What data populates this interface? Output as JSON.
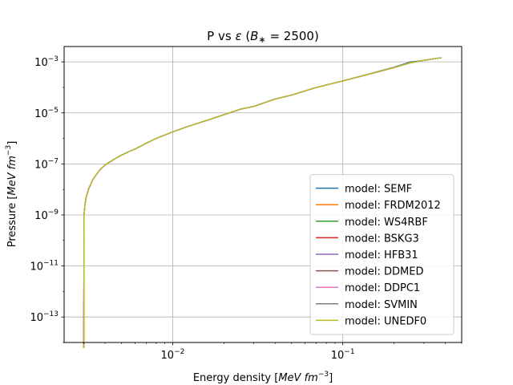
{
  "chart_data": {
    "type": "line",
    "title": "P vs ε (B* = 2500)",
    "xlabel": "Energy density [MeV fm^-3]",
    "ylabel": "Pressure [MeV fm^-3]",
    "x_scale": "log",
    "y_scale": "log",
    "xlim": [
      0.0023,
      0.5
    ],
    "ylim": [
      1e-14,
      0.004
    ],
    "grid": true,
    "legend_position": "lower right",
    "x_major_ticks": [
      0.01,
      0.1
    ],
    "y_major_ticks": [
      1e-13,
      1e-11,
      1e-09,
      1e-07,
      1e-05,
      0.001
    ],
    "series": [
      {
        "name": "model: SEMF",
        "color": "#1f77b4",
        "x": [
          0.003,
          0.00301,
          0.00305,
          0.0031,
          0.0032,
          0.0034,
          0.0037,
          0.004,
          0.0045,
          0.005,
          0.0055,
          0.006,
          0.007,
          0.008,
          0.01,
          0.012,
          0.015,
          0.02,
          0.025,
          0.03,
          0.04,
          0.05,
          0.07,
          0.1,
          0.15,
          0.2,
          0.25,
          0.3,
          0.35,
          0.38
        ],
        "y": [
          6e-15,
          1e-09,
          2.5e-09,
          5e-09,
          1e-08,
          2.5e-08,
          5.5e-08,
          9e-08,
          1.5e-07,
          2.2e-07,
          3e-07,
          3.8e-07,
          6.5e-07,
          1e-06,
          1.8e-06,
          2.8e-06,
          4.5e-06,
          8.5e-06,
          1.4e-05,
          1.8e-05,
          3.5e-05,
          5e-05,
          0.0001,
          0.00018,
          0.00037,
          0.00062,
          0.001,
          0.00115,
          0.00135,
          0.00145
        ]
      },
      {
        "name": "model: FRDM2012",
        "color": "#ff7f0e",
        "x": [
          0.003,
          0.00301,
          0.00305,
          0.0031,
          0.0032,
          0.0034,
          0.0037,
          0.004,
          0.0045,
          0.005,
          0.0055,
          0.006,
          0.007,
          0.008,
          0.01,
          0.012,
          0.015,
          0.02,
          0.025,
          0.03,
          0.04,
          0.05,
          0.07,
          0.1,
          0.15,
          0.2,
          0.25,
          0.3,
          0.35,
          0.38
        ],
        "y": [
          6e-15,
          1e-09,
          2.5e-09,
          5e-09,
          1e-08,
          2.5e-08,
          5.5e-08,
          9e-08,
          1.5e-07,
          2.2e-07,
          3e-07,
          3.8e-07,
          6.5e-07,
          1e-06,
          1.8e-06,
          2.8e-06,
          4.5e-06,
          8.5e-06,
          1.4e-05,
          1.8e-05,
          3.5e-05,
          5e-05,
          0.0001,
          0.00018,
          0.00036,
          0.0006,
          0.00094,
          0.00115,
          0.00135,
          0.00145
        ]
      },
      {
        "name": "model: WS4RBF",
        "color": "#2ca02c",
        "x": [
          0.003,
          0.00301,
          0.00305,
          0.0031,
          0.0032,
          0.0034,
          0.0037,
          0.004,
          0.0045,
          0.005,
          0.0055,
          0.006,
          0.007,
          0.008,
          0.01,
          0.012,
          0.015,
          0.02,
          0.025,
          0.03,
          0.04,
          0.05,
          0.07,
          0.1,
          0.15,
          0.2,
          0.25,
          0.3,
          0.35,
          0.38
        ],
        "y": [
          6e-15,
          1e-09,
          2.5e-09,
          5e-09,
          1e-08,
          2.5e-08,
          5.5e-08,
          9e-08,
          1.5e-07,
          2.2e-07,
          3e-07,
          3.8e-07,
          6.5e-07,
          1e-06,
          1.8e-06,
          2.8e-06,
          4.5e-06,
          8.5e-06,
          1.4e-05,
          1.8e-05,
          3.5e-05,
          5e-05,
          0.0001,
          0.00018,
          0.00036,
          0.0006,
          0.00092,
          0.00115,
          0.00135,
          0.00145
        ]
      },
      {
        "name": "model: BSKG3",
        "color": "#d62728",
        "x": [
          0.003,
          0.00301,
          0.00305,
          0.0031,
          0.0032,
          0.0034,
          0.0037,
          0.004,
          0.0045,
          0.005,
          0.0055,
          0.006,
          0.007,
          0.008,
          0.01,
          0.012,
          0.015,
          0.02,
          0.025,
          0.03,
          0.04,
          0.05,
          0.07,
          0.1,
          0.15,
          0.2,
          0.25,
          0.3,
          0.35,
          0.38
        ],
        "y": [
          6e-15,
          1e-09,
          2.5e-09,
          5e-09,
          1e-08,
          2.5e-08,
          5.5e-08,
          9e-08,
          1.5e-07,
          2.2e-07,
          3e-07,
          3.8e-07,
          6.5e-07,
          1e-06,
          1.8e-06,
          2.8e-06,
          4.5e-06,
          8.5e-06,
          1.4e-05,
          1.8e-05,
          3.5e-05,
          5e-05,
          0.0001,
          0.00018,
          0.00036,
          0.0006,
          0.00093,
          0.00115,
          0.00135,
          0.00145
        ]
      },
      {
        "name": "model: HFB31",
        "color": "#9467bd",
        "x": [
          0.003,
          0.00301,
          0.00305,
          0.0031,
          0.0032,
          0.0034,
          0.0037,
          0.004,
          0.0045,
          0.005,
          0.0055,
          0.006,
          0.007,
          0.008,
          0.01,
          0.012,
          0.015,
          0.02,
          0.025,
          0.03,
          0.04,
          0.05,
          0.07,
          0.1,
          0.15,
          0.2,
          0.25,
          0.3,
          0.35,
          0.38
        ],
        "y": [
          6e-15,
          1e-09,
          2.5e-09,
          5e-09,
          1e-08,
          2.5e-08,
          5.5e-08,
          9e-08,
          1.5e-07,
          2.2e-07,
          3e-07,
          3.8e-07,
          6.5e-07,
          1e-06,
          1.8e-06,
          2.8e-06,
          4.5e-06,
          8.5e-06,
          1.4e-05,
          1.8e-05,
          3.5e-05,
          5e-05,
          0.0001,
          0.00018,
          0.00036,
          0.0006,
          0.00092,
          0.00115,
          0.00135,
          0.00145
        ]
      },
      {
        "name": "model: DDMED",
        "color": "#8c564b",
        "x": [
          0.003,
          0.00301,
          0.00305,
          0.0031,
          0.0032,
          0.0034,
          0.0037,
          0.004,
          0.0045,
          0.005,
          0.0055,
          0.006,
          0.007,
          0.008,
          0.01,
          0.012,
          0.015,
          0.02,
          0.025,
          0.03,
          0.04,
          0.05,
          0.07,
          0.1,
          0.15,
          0.2,
          0.25,
          0.3,
          0.35,
          0.38
        ],
        "y": [
          6e-15,
          1e-09,
          2.5e-09,
          5e-09,
          1e-08,
          2.5e-08,
          5.5e-08,
          9e-08,
          1.5e-07,
          2.2e-07,
          3e-07,
          3.8e-07,
          6.5e-07,
          1e-06,
          1.8e-06,
          2.8e-06,
          4.5e-06,
          8.5e-06,
          1.4e-05,
          1.8e-05,
          3.5e-05,
          5e-05,
          0.0001,
          0.00018,
          0.00036,
          0.0006,
          0.00092,
          0.00115,
          0.00135,
          0.00145
        ]
      },
      {
        "name": "model: DDPC1",
        "color": "#e377c2",
        "x": [
          0.003,
          0.00301,
          0.00305,
          0.0031,
          0.0032,
          0.0034,
          0.0037,
          0.004,
          0.0045,
          0.005,
          0.0055,
          0.006,
          0.007,
          0.008,
          0.01,
          0.012,
          0.015,
          0.02,
          0.025,
          0.03,
          0.04,
          0.05,
          0.07,
          0.1,
          0.15,
          0.2,
          0.25,
          0.3,
          0.35,
          0.38
        ],
        "y": [
          6e-15,
          1e-09,
          2.5e-09,
          5e-09,
          1e-08,
          2.5e-08,
          5.5e-08,
          9e-08,
          1.5e-07,
          2.2e-07,
          3e-07,
          3.8e-07,
          6.5e-07,
          1e-06,
          1.8e-06,
          2.8e-06,
          4.5e-06,
          8.5e-06,
          1.4e-05,
          1.8e-05,
          3.5e-05,
          5e-05,
          0.0001,
          0.00018,
          0.00036,
          0.0006,
          0.00092,
          0.00115,
          0.00135,
          0.00145
        ]
      },
      {
        "name": "model: SVMIN",
        "color": "#7f7f7f",
        "x": [
          0.003,
          0.00301,
          0.00305,
          0.0031,
          0.0032,
          0.0034,
          0.0037,
          0.004,
          0.0045,
          0.005,
          0.0055,
          0.006,
          0.007,
          0.008,
          0.01,
          0.012,
          0.015,
          0.02,
          0.025,
          0.03,
          0.04,
          0.05,
          0.07,
          0.1,
          0.15,
          0.2,
          0.25,
          0.3,
          0.35,
          0.38
        ],
        "y": [
          6e-15,
          1e-09,
          2.5e-09,
          5e-09,
          1e-08,
          2.5e-08,
          5.5e-08,
          9e-08,
          1.5e-07,
          2.2e-07,
          3e-07,
          3.8e-07,
          6.5e-07,
          1e-06,
          1.8e-06,
          2.8e-06,
          4.5e-06,
          8.5e-06,
          1.4e-05,
          1.8e-05,
          3.5e-05,
          5e-05,
          0.0001,
          0.00018,
          0.00036,
          0.0006,
          0.00092,
          0.00115,
          0.00135,
          0.00145
        ]
      },
      {
        "name": "model: UNEDF0",
        "color": "#bcbd22",
        "x": [
          0.003,
          0.00301,
          0.00305,
          0.0031,
          0.0032,
          0.0034,
          0.0037,
          0.004,
          0.0045,
          0.005,
          0.0055,
          0.006,
          0.007,
          0.008,
          0.01,
          0.012,
          0.015,
          0.02,
          0.025,
          0.03,
          0.04,
          0.05,
          0.07,
          0.1,
          0.15,
          0.2,
          0.25,
          0.3,
          0.35,
          0.38
        ],
        "y": [
          6e-15,
          1e-09,
          2.5e-09,
          5e-09,
          1e-08,
          2.5e-08,
          5.5e-08,
          9e-08,
          1.5e-07,
          2.2e-07,
          3e-07,
          3.8e-07,
          6.5e-07,
          1e-06,
          1.8e-06,
          2.8e-06,
          4.5e-06,
          8.5e-06,
          1.4e-05,
          1.8e-05,
          3.5e-05,
          5e-05,
          0.0001,
          0.00018,
          0.00036,
          0.0006,
          0.00092,
          0.00115,
          0.00135,
          0.00145
        ]
      }
    ]
  }
}
